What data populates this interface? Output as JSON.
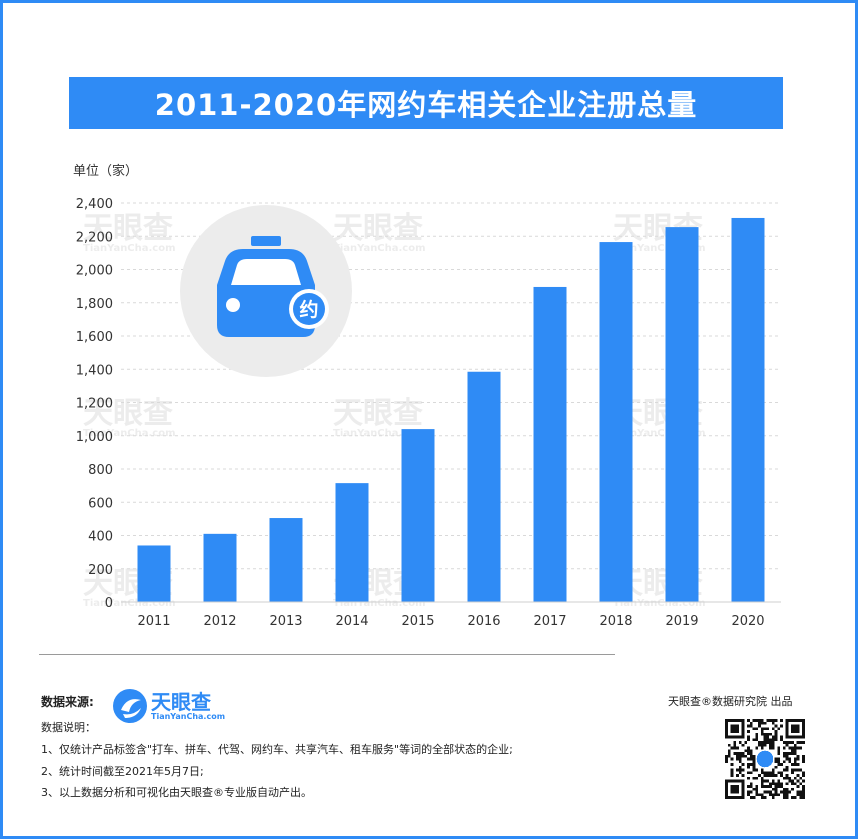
{
  "title": "2011-2020年网约车相关企业注册总量",
  "unit_label": "单位（家）",
  "car_icon_text": "约",
  "watermark": {
    "cn": "天眼查",
    "en": "TianYanCha.com"
  },
  "footer": {
    "source_label": "数据来源:",
    "brand_name": "天眼查",
    "brand_url": "TianYanCha.com",
    "notes_title": "数据说明：",
    "notes": [
      "1、仅统计产品标签含\"打车、拼车、代驾、网约车、共享汽车、租车服务\"等词的全部状态的企业;",
      "2、统计时间截至2021年5月7日;",
      "3、以上数据分析和可视化由天眼查®专业版自动产出。"
    ],
    "credit": "天眼查®数据研究院 出品"
  },
  "colors": {
    "accent": "#2f8bf5",
    "bar": "#2f8bf5",
    "grid": "#d9d9d9",
    "icon_circle": "#ececec"
  },
  "chart_data": {
    "type": "bar",
    "categories": [
      "2011",
      "2012",
      "2013",
      "2014",
      "2015",
      "2016",
      "2017",
      "2018",
      "2019",
      "2020"
    ],
    "values": [
      340,
      410,
      505,
      715,
      1040,
      1385,
      1895,
      2165,
      2255,
      2310
    ],
    "ylim": [
      0,
      2400
    ],
    "yticks": [
      "0",
      "200",
      "400",
      "600",
      "800",
      "1,000",
      "1,200",
      "1,400",
      "1,600",
      "1,800",
      "2,000",
      "2,200",
      "2,400"
    ],
    "grid": true,
    "legend": "none"
  }
}
